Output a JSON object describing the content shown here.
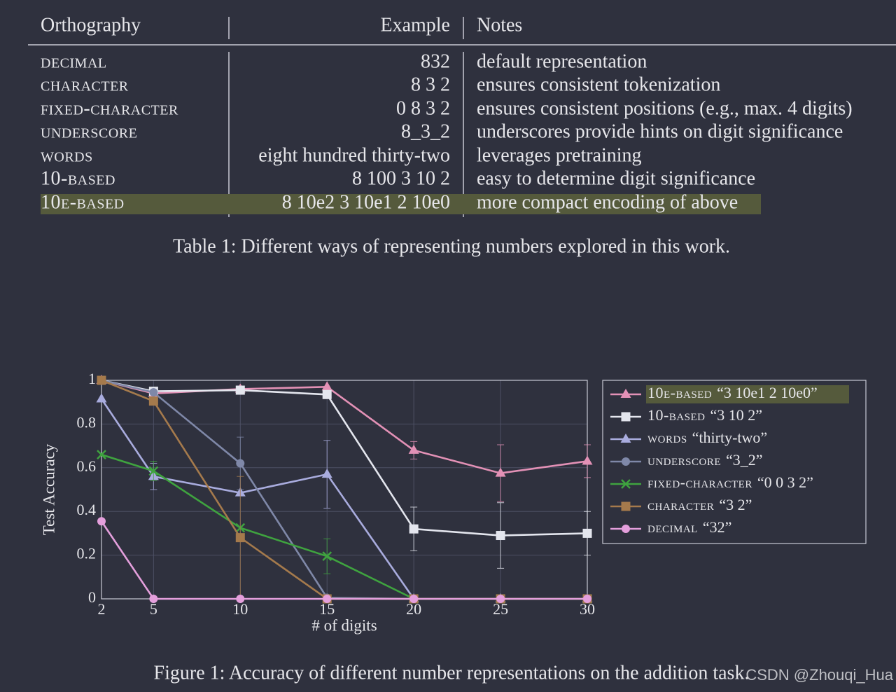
{
  "table": {
    "header": [
      "Orthography",
      "Example",
      "Notes"
    ],
    "rows": [
      [
        "decimal",
        "832",
        "default representation"
      ],
      [
        "character",
        "8 3 2",
        "ensures consistent tokenization"
      ],
      [
        "fixed-character",
        "0 8 3 2",
        "ensures consistent positions (e.g., max. 4 digits)"
      ],
      [
        "underscore",
        "8_3_2",
        "underscores provide hints on digit significance"
      ],
      [
        "words",
        "eight hundred thirty-two",
        "leverages pretraining"
      ],
      [
        "10-based",
        "8 100 3 10 2",
        "easy to determine digit significance"
      ],
      [
        "10e-based",
        "8 10e2 3 10e1 2 10e0",
        "more compact encoding of above"
      ]
    ],
    "highlighted_row": 6
  },
  "table_caption": "Table 1: Different ways of representing numbers explored in this work.",
  "chart_data": {
    "type": "line",
    "xlabel": "# of digits",
    "ylabel": "Test Accuracy",
    "x": [
      2,
      5,
      10,
      15,
      20,
      25,
      30
    ],
    "xlim": [
      2,
      30
    ],
    "xticks": [
      2,
      5,
      10,
      15,
      20,
      25,
      30
    ],
    "ylim": [
      0,
      1
    ],
    "yticks": [
      0,
      0.2,
      0.4,
      0.6,
      0.8,
      1
    ],
    "grid": true,
    "legend": "right",
    "highlighted_series": 0,
    "series": [
      {
        "name": "10e-based",
        "example": "“3 10e1 2 10e0”",
        "color": "#e391b6",
        "marker": "triangle",
        "values": [
          1,
          0.94,
          0.96,
          0.97,
          0.68,
          0.575,
          0.63
        ],
        "errors": [
          null,
          null,
          null,
          null,
          0.04,
          0.13,
          0.075
        ]
      },
      {
        "name": "10-based",
        "example": "“3 10 2”",
        "color": "#e4e6ee",
        "marker": "square",
        "values": [
          1,
          0.95,
          0.955,
          0.935,
          0.32,
          0.29,
          0.3
        ],
        "errors": [
          null,
          null,
          null,
          null,
          0.1,
          0.15,
          0.1
        ]
      },
      {
        "name": "words",
        "example": "“thirty-two”",
        "color": "#a9acde",
        "marker": "triangle",
        "values": [
          0.915,
          0.56,
          0.485,
          0.57,
          0,
          0,
          0
        ],
        "errors": [
          null,
          0.06,
          null,
          0.155,
          null,
          null,
          null
        ]
      },
      {
        "name": "underscore",
        "example": "“3_2”",
        "color": "#7f88a8",
        "marker": "circle",
        "values": [
          1,
          0.945,
          0.62,
          0.005,
          0,
          0,
          0
        ],
        "errors": [
          null,
          null,
          0.12,
          null,
          null,
          null,
          null
        ]
      },
      {
        "name": "fixed-character",
        "example": "“0 0 3 2”",
        "color": "#3fa33f",
        "marker": "x",
        "values": [
          0.66,
          0.585,
          0.325,
          0.195,
          0,
          0,
          0
        ],
        "errors": [
          null,
          0.045,
          null,
          0.08,
          null,
          null,
          null
        ]
      },
      {
        "name": "character",
        "example": "“3 2”",
        "color": "#a57a4c",
        "marker": "square",
        "values": [
          1,
          0.905,
          0.28,
          0,
          0,
          0,
          0
        ],
        "errors": [
          null,
          null,
          0.28,
          null,
          null,
          null,
          null
        ]
      },
      {
        "name": "decimal",
        "example": "“32”",
        "color": "#e49fdc",
        "marker": "circle",
        "values": [
          0.355,
          0,
          0,
          0,
          0,
          0,
          0
        ],
        "errors": [
          null,
          null,
          null,
          null,
          null,
          null,
          null
        ]
      }
    ]
  },
  "figure_caption": "Figure 1: Accuracy of different number representations on the addition task.",
  "watermark": "CSDN @Zhouqi_Hua"
}
